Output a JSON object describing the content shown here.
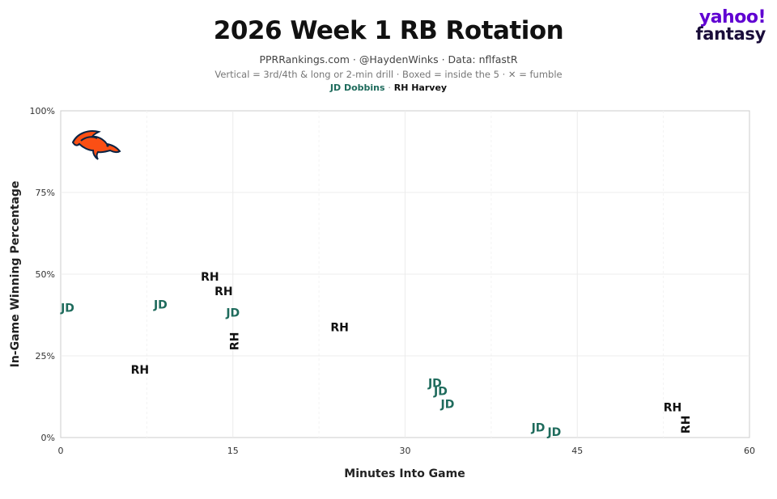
{
  "header": {
    "title": "2026 Week 1 RB Rotation",
    "subtitle": "PPRRankings.com · @HaydenWinks · Data: nflfastR",
    "note": "Vertical = 3rd/4th & long or 2-min drill · Boxed = inside the 5 · ✕ = fumble",
    "legend": [
      {
        "label": "JD Dobbins",
        "color": "#1e6b5c"
      },
      {
        "label": "RH Harvey",
        "color": "#111111"
      }
    ],
    "legend_sep": "·"
  },
  "logo": {
    "line1": "yahoo!",
    "line2": "fantasy",
    "brand_color": "#6001d2",
    "team_logo": "broncos-horse-icon"
  },
  "chart_data": {
    "type": "scatter",
    "xlabel": "Minutes Into Game",
    "ylabel": "In-Game Winning Percentage",
    "xlim": [
      0,
      60
    ],
    "ylim": [
      0,
      100
    ],
    "xticks": [
      "0",
      "15",
      "30",
      "45",
      "60"
    ],
    "yticks": [
      "0%",
      "25%",
      "50%",
      "75%",
      "100%"
    ],
    "grid": true,
    "series": [
      {
        "name": "JD Dobbins",
        "marker": "JD",
        "color": "#1e6b5c",
        "points": [
          {
            "x": 0.6,
            "y": 39.5,
            "vertical": false
          },
          {
            "x": 8.7,
            "y": 40.5,
            "vertical": false
          },
          {
            "x": 15.0,
            "y": 38.0,
            "vertical": false
          },
          {
            "x": 32.6,
            "y": 16.5,
            "vertical": false
          },
          {
            "x": 33.1,
            "y": 14.0,
            "vertical": false
          },
          {
            "x": 33.7,
            "y": 10.0,
            "vertical": false
          },
          {
            "x": 41.6,
            "y": 2.8,
            "vertical": false
          },
          {
            "x": 43.0,
            "y": 1.5,
            "vertical": false
          }
        ]
      },
      {
        "name": "RH Harvey",
        "marker": "RH",
        "color": "#111111",
        "points": [
          {
            "x": 13.0,
            "y": 49.0,
            "vertical": false
          },
          {
            "x": 14.2,
            "y": 44.5,
            "vertical": false
          },
          {
            "x": 15.2,
            "y": 29.5,
            "vertical": true
          },
          {
            "x": 24.3,
            "y": 33.5,
            "vertical": false
          },
          {
            "x": 6.9,
            "y": 20.5,
            "vertical": false
          },
          {
            "x": 53.3,
            "y": 9.0,
            "vertical": false
          },
          {
            "x": 54.5,
            "y": 4.0,
            "vertical": true
          }
        ]
      }
    ]
  }
}
